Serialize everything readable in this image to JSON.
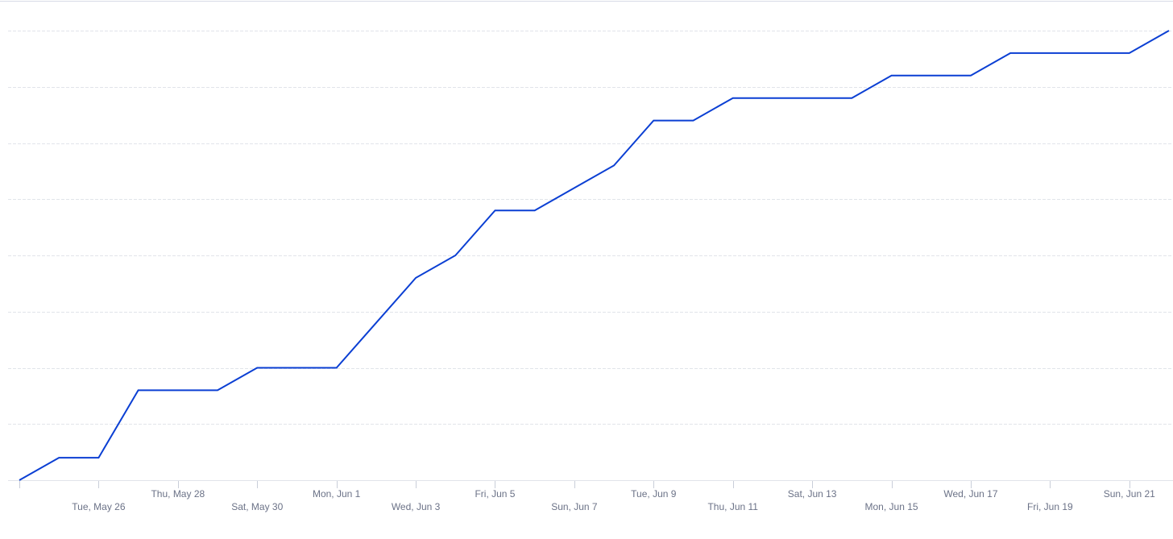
{
  "chart_data": {
    "type": "line",
    "title": "",
    "xlabel": "",
    "ylabel": "",
    "x": [
      "2020-05-24",
      "2020-05-25",
      "2020-05-26",
      "2020-05-27",
      "2020-05-28",
      "2020-05-29",
      "2020-05-30",
      "2020-05-31",
      "2020-06-01",
      "2020-06-02",
      "2020-06-03",
      "2020-06-04",
      "2020-06-05",
      "2020-06-06",
      "2020-06-07",
      "2020-06-08",
      "2020-06-09",
      "2020-06-10",
      "2020-06-11",
      "2020-06-12",
      "2020-06-13",
      "2020-06-14",
      "2020-06-15",
      "2020-06-16",
      "2020-06-17",
      "2020-06-18",
      "2020-06-19",
      "2020-06-20",
      "2020-06-21",
      "2020-06-22"
    ],
    "series": [
      {
        "values": [
          0.0,
          0.4,
          0.4,
          1.6,
          1.6,
          1.6,
          2.0,
          2.0,
          2.0,
          2.8,
          3.6,
          4.0,
          4.8,
          4.8,
          5.2,
          5.6,
          6.4,
          6.4,
          6.8,
          6.8,
          6.8,
          6.8,
          7.2,
          7.2,
          7.2,
          7.6,
          7.6,
          7.6,
          7.6,
          8.0
        ]
      }
    ],
    "ylim": [
      0,
      8
    ],
    "y_gridlines": 9,
    "grid": true,
    "legend": "none",
    "line_color": "#0b3fd3",
    "grid_color": "#e1e4ea",
    "tick_label_color": "#6b7287",
    "x_tick_labels": [
      {
        "date": "2020-05-26",
        "label": "Tue, May 26"
      },
      {
        "date": "2020-05-28",
        "label": "Thu, May 28"
      },
      {
        "date": "2020-05-30",
        "label": "Sat, May 30"
      },
      {
        "date": "2020-06-01",
        "label": "Mon, Jun 1"
      },
      {
        "date": "2020-06-03",
        "label": "Wed, Jun 3"
      },
      {
        "date": "2020-06-05",
        "label": "Fri, Jun 5"
      },
      {
        "date": "2020-06-07",
        "label": "Sun, Jun 7"
      },
      {
        "date": "2020-06-09",
        "label": "Tue, Jun 9"
      },
      {
        "date": "2020-06-11",
        "label": "Thu, Jun 11"
      },
      {
        "date": "2020-06-13",
        "label": "Sat, Jun 13"
      },
      {
        "date": "2020-06-15",
        "label": "Mon, Jun 15"
      },
      {
        "date": "2020-06-17",
        "label": "Wed, Jun 17"
      },
      {
        "date": "2020-06-19",
        "label": "Fri, Jun 19"
      },
      {
        "date": "2020-06-21",
        "label": "Sun, Jun 21"
      }
    ],
    "x_ticks": [
      "2020-05-24",
      "2020-05-26",
      "2020-05-28",
      "2020-05-30",
      "2020-06-01",
      "2020-06-03",
      "2020-06-05",
      "2020-06-07",
      "2020-06-09",
      "2020-06-11",
      "2020-06-13",
      "2020-06-15",
      "2020-06-17",
      "2020-06-19",
      "2020-06-21"
    ]
  }
}
